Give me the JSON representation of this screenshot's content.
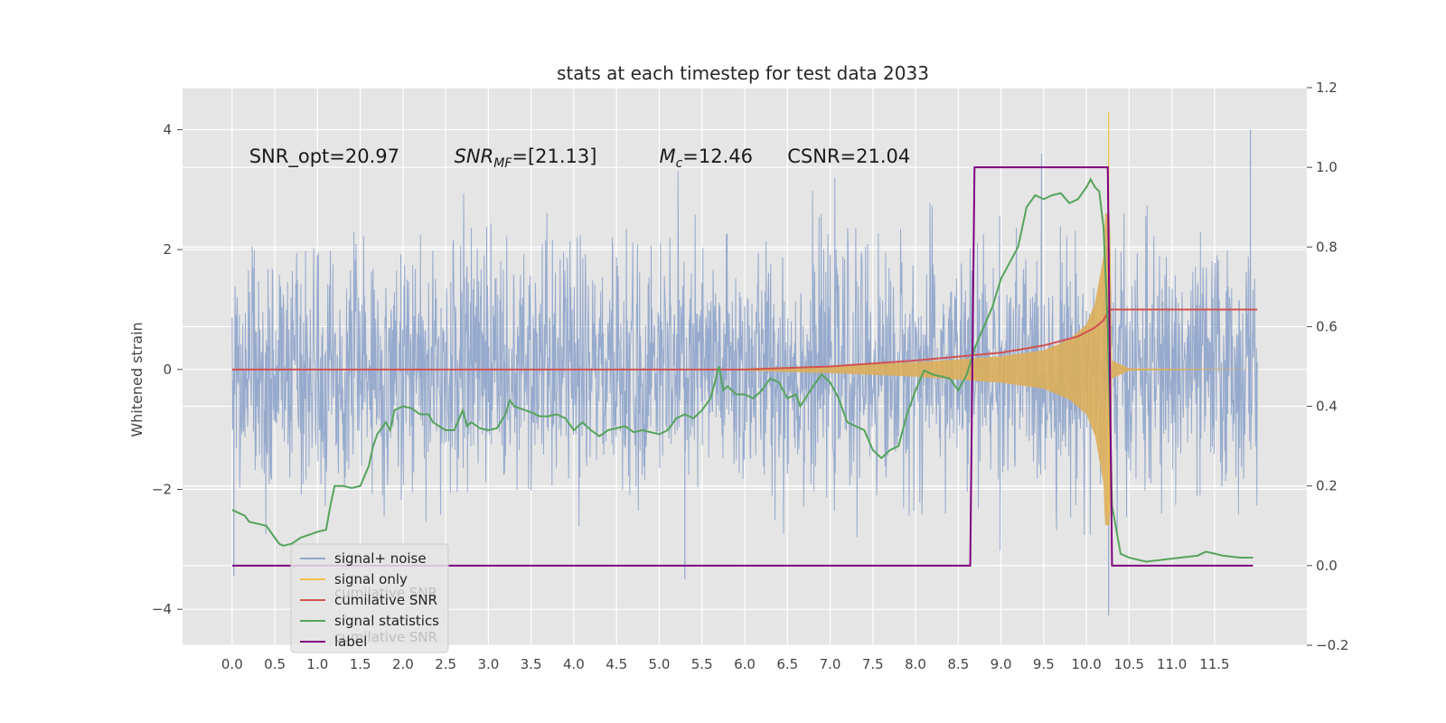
{
  "chart_data": {
    "type": "line",
    "title": "stats at each timestep for test data 2033",
    "ylabel_left": "Whitened strain",
    "ylabel_right": "",
    "xlabel": "",
    "x_ticks": [
      "0.0",
      "0.5",
      "1.0",
      "1.5",
      "2.0",
      "2.5",
      "3.0",
      "3.5",
      "4.0",
      "4.5",
      "5.0",
      "5.5",
      "6.0",
      "6.5",
      "7.0",
      "7.5",
      "8.0",
      "8.5",
      "9.0",
      "9.5",
      "10.0",
      "10.5",
      "11.0",
      "11.5"
    ],
    "y_left_ticks": [
      "−4",
      "−2",
      "0",
      "2",
      "4"
    ],
    "y_right_ticks": [
      "−0.2",
      "0.0",
      "0.2",
      "0.4",
      "0.6",
      "0.8",
      "1.0",
      "1.2"
    ],
    "xlim": [
      -0.58,
      12.58
    ],
    "ylim_left": [
      -4.6,
      4.7
    ],
    "ylim_right": [
      -0.2,
      1.2
    ],
    "grid": true,
    "background": "#e5e5e5",
    "legend_position": "lower-left",
    "annotations": [
      {
        "text": "SNR_opt=20.97",
        "x": 0.2,
        "y": 3.45
      },
      {
        "text": "SNR_MF=[21.13]",
        "x": 2.6,
        "y": 3.45
      },
      {
        "text": "M_c=12.46",
        "x": 5.0,
        "y": 3.45
      },
      {
        "text": "CSNR=21.04",
        "x": 6.5,
        "y": 3.45
      }
    ],
    "series": [
      {
        "name": "signal+ noise",
        "axis": "left",
        "color": "#91a6cb",
        "kind": "noise",
        "x_range": [
          0.0,
          12.0
        ],
        "amplitude_std": 1.0,
        "peaks": [
          {
            "x": 10.26,
            "y": -4.1
          },
          {
            "x": 11.92,
            "y": 4.0
          },
          {
            "x": 5.3,
            "y": -3.5
          },
          {
            "x": 0.02,
            "y": -3.45
          }
        ]
      },
      {
        "name": "signal only",
        "axis": "left",
        "color": "#e4b95c",
        "kind": "chirp",
        "merger_time": 10.26,
        "peak_amplitude": 4.3,
        "envelope": [
          {
            "x": 6.0,
            "amp": 0.02
          },
          {
            "x": 7.0,
            "amp": 0.06
          },
          {
            "x": 8.0,
            "amp": 0.12
          },
          {
            "x": 9.0,
            "amp": 0.22
          },
          {
            "x": 9.5,
            "amp": 0.32
          },
          {
            "x": 9.8,
            "amp": 0.5
          },
          {
            "x": 10.0,
            "amp": 0.75
          },
          {
            "x": 10.1,
            "amp": 1.1
          },
          {
            "x": 10.2,
            "amp": 1.9
          },
          {
            "x": 10.26,
            "amp": 4.3
          },
          {
            "x": 10.3,
            "amp": 0.15
          },
          {
            "x": 10.5,
            "amp": 0.02
          },
          {
            "x": 12.0,
            "amp": 0.0
          }
        ]
      },
      {
        "name": "cumilative SNR",
        "axis": "left",
        "color": "#d1524f",
        "points": [
          {
            "x": 0.0,
            "y": 0.0
          },
          {
            "x": 6.0,
            "y": 0.0
          },
          {
            "x": 7.0,
            "y": 0.05
          },
          {
            "x": 8.0,
            "y": 0.15
          },
          {
            "x": 9.0,
            "y": 0.28
          },
          {
            "x": 9.5,
            "y": 0.4
          },
          {
            "x": 9.9,
            "y": 0.55
          },
          {
            "x": 10.1,
            "y": 0.7
          },
          {
            "x": 10.2,
            "y": 0.82
          },
          {
            "x": 10.25,
            "y": 0.95
          },
          {
            "x": 10.28,
            "y": 1.0
          },
          {
            "x": 12.0,
            "y": 1.0
          }
        ]
      },
      {
        "name": "signal statistics",
        "axis": "right",
        "color": "#56a35c",
        "points": [
          {
            "x": 0.0,
            "y": 0.14
          },
          {
            "x": 0.1,
            "y": 0.13
          },
          {
            "x": 0.15,
            "y": 0.125
          },
          {
            "x": 0.2,
            "y": 0.11
          },
          {
            "x": 0.3,
            "y": 0.105
          },
          {
            "x": 0.4,
            "y": 0.1
          },
          {
            "x": 0.5,
            "y": 0.07
          },
          {
            "x": 0.55,
            "y": 0.055
          },
          {
            "x": 0.6,
            "y": 0.05
          },
          {
            "x": 0.7,
            "y": 0.055
          },
          {
            "x": 0.8,
            "y": 0.07
          },
          {
            "x": 1.0,
            "y": 0.085
          },
          {
            "x": 1.1,
            "y": 0.09
          },
          {
            "x": 1.15,
            "y": 0.15
          },
          {
            "x": 1.2,
            "y": 0.2
          },
          {
            "x": 1.3,
            "y": 0.2
          },
          {
            "x": 1.4,
            "y": 0.195
          },
          {
            "x": 1.5,
            "y": 0.2
          },
          {
            "x": 1.6,
            "y": 0.25
          },
          {
            "x": 1.65,
            "y": 0.3
          },
          {
            "x": 1.7,
            "y": 0.33
          },
          {
            "x": 1.8,
            "y": 0.36
          },
          {
            "x": 1.85,
            "y": 0.34
          },
          {
            "x": 1.9,
            "y": 0.39
          },
          {
            "x": 2.0,
            "y": 0.4
          },
          {
            "x": 2.1,
            "y": 0.395
          },
          {
            "x": 2.2,
            "y": 0.38
          },
          {
            "x": 2.3,
            "y": 0.38
          },
          {
            "x": 2.35,
            "y": 0.36
          },
          {
            "x": 2.5,
            "y": 0.34
          },
          {
            "x": 2.6,
            "y": 0.34
          },
          {
            "x": 2.7,
            "y": 0.39
          },
          {
            "x": 2.75,
            "y": 0.35
          },
          {
            "x": 2.8,
            "y": 0.36
          },
          {
            "x": 2.9,
            "y": 0.345
          },
          {
            "x": 3.0,
            "y": 0.34
          },
          {
            "x": 3.1,
            "y": 0.345
          },
          {
            "x": 3.2,
            "y": 0.38
          },
          {
            "x": 3.25,
            "y": 0.415
          },
          {
            "x": 3.3,
            "y": 0.4
          },
          {
            "x": 3.5,
            "y": 0.385
          },
          {
            "x": 3.6,
            "y": 0.375
          },
          {
            "x": 3.7,
            "y": 0.375
          },
          {
            "x": 3.8,
            "y": 0.38
          },
          {
            "x": 3.9,
            "y": 0.37
          },
          {
            "x": 4.0,
            "y": 0.34
          },
          {
            "x": 4.1,
            "y": 0.36
          },
          {
            "x": 4.2,
            "y": 0.34
          },
          {
            "x": 4.3,
            "y": 0.325
          },
          {
            "x": 4.4,
            "y": 0.34
          },
          {
            "x": 4.6,
            "y": 0.35
          },
          {
            "x": 4.7,
            "y": 0.335
          },
          {
            "x": 4.8,
            "y": 0.34
          },
          {
            "x": 5.0,
            "y": 0.33
          },
          {
            "x": 5.1,
            "y": 0.34
          },
          {
            "x": 5.2,
            "y": 0.37
          },
          {
            "x": 5.3,
            "y": 0.38
          },
          {
            "x": 5.4,
            "y": 0.37
          },
          {
            "x": 5.5,
            "y": 0.39
          },
          {
            "x": 5.6,
            "y": 0.42
          },
          {
            "x": 5.7,
            "y": 0.5
          },
          {
            "x": 5.75,
            "y": 0.44
          },
          {
            "x": 5.8,
            "y": 0.45
          },
          {
            "x": 5.9,
            "y": 0.43
          },
          {
            "x": 6.0,
            "y": 0.43
          },
          {
            "x": 6.1,
            "y": 0.42
          },
          {
            "x": 6.2,
            "y": 0.44
          },
          {
            "x": 6.3,
            "y": 0.47
          },
          {
            "x": 6.4,
            "y": 0.46
          },
          {
            "x": 6.5,
            "y": 0.42
          },
          {
            "x": 6.6,
            "y": 0.43
          },
          {
            "x": 6.65,
            "y": 0.4
          },
          {
            "x": 6.8,
            "y": 0.45
          },
          {
            "x": 6.9,
            "y": 0.48
          },
          {
            "x": 7.0,
            "y": 0.46
          },
          {
            "x": 7.1,
            "y": 0.42
          },
          {
            "x": 7.2,
            "y": 0.36
          },
          {
            "x": 7.3,
            "y": 0.35
          },
          {
            "x": 7.4,
            "y": 0.34
          },
          {
            "x": 7.5,
            "y": 0.29
          },
          {
            "x": 7.6,
            "y": 0.27
          },
          {
            "x": 7.7,
            "y": 0.29
          },
          {
            "x": 7.8,
            "y": 0.3
          },
          {
            "x": 7.9,
            "y": 0.38
          },
          {
            "x": 8.0,
            "y": 0.44
          },
          {
            "x": 8.1,
            "y": 0.49
          },
          {
            "x": 8.2,
            "y": 0.48
          },
          {
            "x": 8.4,
            "y": 0.47
          },
          {
            "x": 8.5,
            "y": 0.44
          },
          {
            "x": 8.6,
            "y": 0.48
          },
          {
            "x": 8.7,
            "y": 0.55
          },
          {
            "x": 8.8,
            "y": 0.6
          },
          {
            "x": 8.9,
            "y": 0.65
          },
          {
            "x": 9.0,
            "y": 0.72
          },
          {
            "x": 9.1,
            "y": 0.76
          },
          {
            "x": 9.2,
            "y": 0.8
          },
          {
            "x": 9.3,
            "y": 0.9
          },
          {
            "x": 9.4,
            "y": 0.93
          },
          {
            "x": 9.5,
            "y": 0.92
          },
          {
            "x": 9.6,
            "y": 0.93
          },
          {
            "x": 9.7,
            "y": 0.935
          },
          {
            "x": 9.8,
            "y": 0.91
          },
          {
            "x": 9.9,
            "y": 0.92
          },
          {
            "x": 10.0,
            "y": 0.95
          },
          {
            "x": 10.05,
            "y": 0.97
          },
          {
            "x": 10.1,
            "y": 0.95
          },
          {
            "x": 10.15,
            "y": 0.94
          },
          {
            "x": 10.2,
            "y": 0.85
          },
          {
            "x": 10.25,
            "y": 0.6
          },
          {
            "x": 10.3,
            "y": 0.15
          },
          {
            "x": 10.4,
            "y": 0.03
          },
          {
            "x": 10.5,
            "y": 0.02
          },
          {
            "x": 10.7,
            "y": 0.01
          },
          {
            "x": 10.9,
            "y": 0.015
          },
          {
            "x": 11.1,
            "y": 0.02
          },
          {
            "x": 11.3,
            "y": 0.025
          },
          {
            "x": 11.4,
            "y": 0.035
          },
          {
            "x": 11.5,
            "y": 0.03
          },
          {
            "x": 11.6,
            "y": 0.025
          },
          {
            "x": 11.8,
            "y": 0.02
          },
          {
            "x": 11.95,
            "y": 0.02
          }
        ]
      },
      {
        "name": "label",
        "axis": "right",
        "color": "#800080",
        "points": [
          {
            "x": 0.0,
            "y": 0.0
          },
          {
            "x": 8.64,
            "y": 0.0
          },
          {
            "x": 8.69,
            "y": 1.0
          },
          {
            "x": 10.25,
            "y": 1.0
          },
          {
            "x": 10.3,
            "y": 0.0
          },
          {
            "x": 11.95,
            "y": 0.0
          }
        ]
      }
    ],
    "legend": [
      {
        "label": "signal+ noise",
        "color": "#91a6cb"
      },
      {
        "label": "signal only",
        "color": "#f2c04c"
      },
      {
        "label": "cumilative SNR",
        "color": "#d1524f"
      },
      {
        "label": "signal statistics",
        "color": "#56a35c"
      },
      {
        "label": "label",
        "color": "#800080"
      }
    ],
    "legend_ghost_text": [
      "cumilative SNR",
      "cumilative SNR"
    ]
  }
}
